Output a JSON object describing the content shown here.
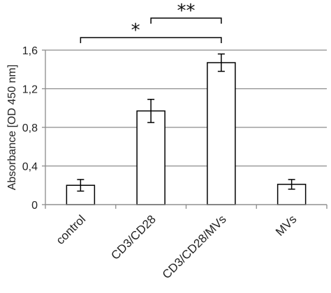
{
  "chart_data": {
    "type": "bar",
    "categories": [
      "control",
      "CD3/CD28",
      "CD3/CD28/MVs",
      "MVs"
    ],
    "values": [
      0.2,
      0.97,
      1.47,
      0.21
    ],
    "errors": [
      0.06,
      0.12,
      0.09,
      0.05
    ],
    "ylabel": "Absorbance [OD 450 nm]",
    "xlabel": "",
    "ylim": [
      0,
      1.6
    ],
    "yticks": [
      0,
      0.4,
      0.8,
      1.2,
      1.6
    ],
    "ytick_labels": [
      "0",
      "0,4",
      "0,8",
      "1,2",
      "1,6"
    ],
    "grid": true,
    "colors": {
      "bar_fill": "#ffffff",
      "bar_stroke": "#000000",
      "grid": "#8c8c8c",
      "axis": "#8c8c8c"
    },
    "significance": [
      {
        "from": 0,
        "to": 2,
        "label": "*"
      },
      {
        "from": 1,
        "to": 2,
        "label": "**"
      }
    ]
  }
}
